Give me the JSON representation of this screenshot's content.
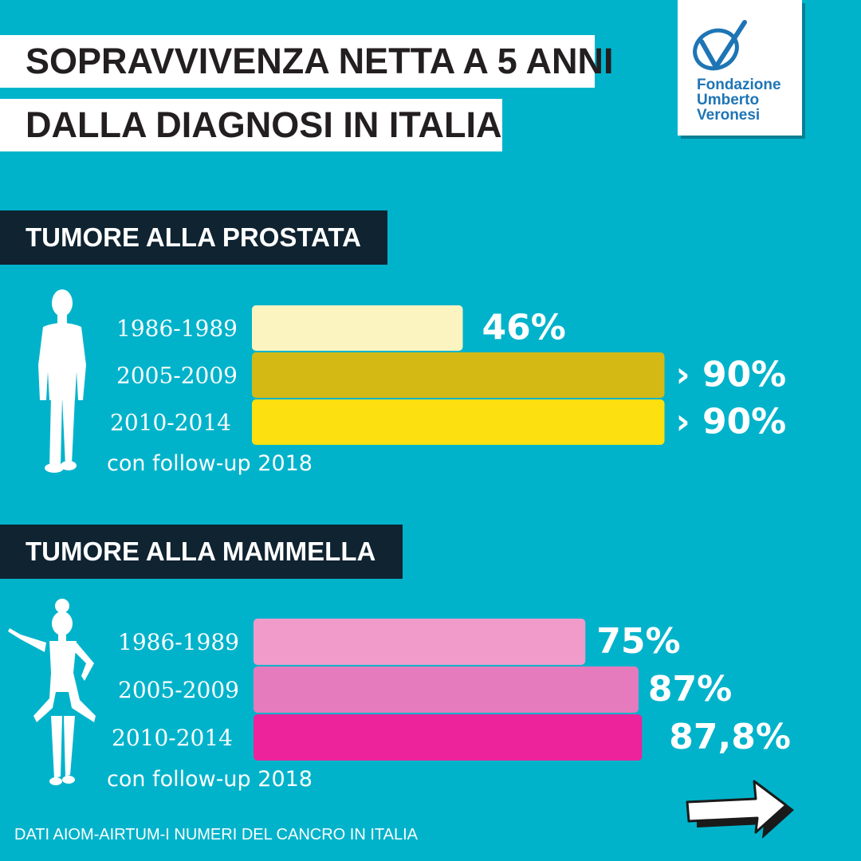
{
  "title": {
    "line1": "SOPRAVVIVENZA NETTA A 5 ANNI",
    "line2": "DALLA DIAGNOSI IN ITALIA"
  },
  "logo": {
    "line1": "Fondazione",
    "line2": "Umberto",
    "line3": "Veronesi",
    "color": "#1e75b5"
  },
  "icons": {
    "man": "man-silhouette-icon",
    "woman": "woman-silhouette-icon",
    "next": "right-arrow-icon"
  },
  "source": "DATI AIOM-AIRTUM-I NUMERI DEL CANCRO IN ITALIA",
  "chart_data": [
    {
      "type": "bar",
      "orientation": "horizontal",
      "title": "TUMORE ALLA PROSTATA",
      "categories": [
        "1986-1989",
        "2005-2009",
        "2010-2014"
      ],
      "category_note": "con follow-up 2018",
      "values": [
        46,
        90,
        90
      ],
      "value_labels": [
        "46%",
        "› 90%",
        "› 90%"
      ],
      "colors": [
        "#fbf4c0",
        "#d4b915",
        "#fde00f"
      ],
      "xlim": [
        0,
        100
      ],
      "grid": false,
      "legend": "none"
    },
    {
      "type": "bar",
      "orientation": "horizontal",
      "title": "TUMORE ALLA MAMMELLA",
      "categories": [
        "1986-1989",
        "2005-2009",
        "2010-2014"
      ],
      "category_note": "con follow-up 2018",
      "values": [
        75,
        87,
        87.8
      ],
      "value_labels": [
        "75%",
        "87%",
        "87,8%"
      ],
      "colors": [
        "#f19bcb",
        "#e57bbd",
        "#ed239b"
      ],
      "xlim": [
        0,
        100
      ],
      "grid": false,
      "legend": "none"
    }
  ]
}
